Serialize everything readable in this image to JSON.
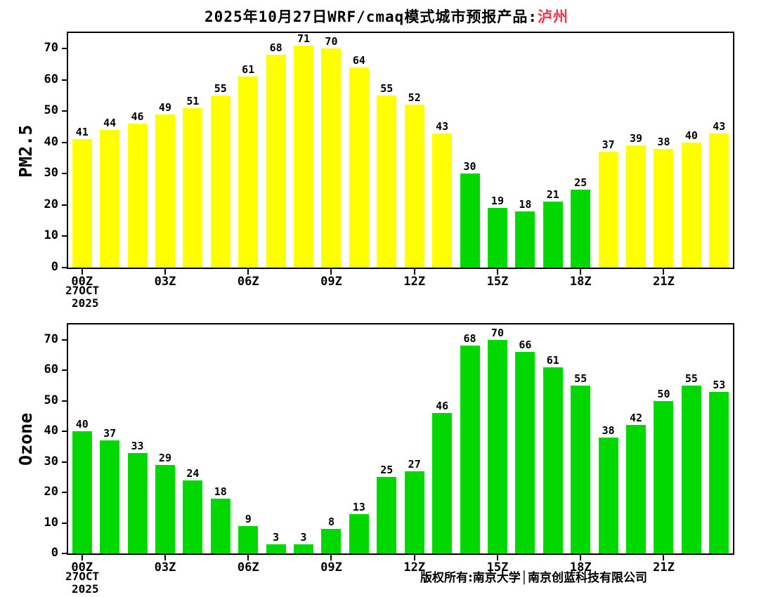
{
  "title": {
    "prefix": "2025年10月27日WRF/cmaq模式城市预报产品:",
    "city": "泸州"
  },
  "colors": {
    "bar_yellow": "#ffff00",
    "bar_green": "#00d800",
    "city_red": "#f5324b",
    "axis_black": "#000000"
  },
  "footer": {
    "copyright": "版权所有:南京大学│南京创蓝科技有限公司"
  },
  "x_axis": {
    "tick_labels": [
      "00Z",
      "03Z",
      "06Z",
      "09Z",
      "12Z",
      "15Z",
      "18Z",
      "21Z"
    ],
    "tick_step": 3,
    "start_date_line1": "27OCT",
    "start_date_line2": "2025"
  },
  "chart_data": [
    {
      "type": "bar",
      "title": "",
      "ylabel": "PM2.5",
      "xlabel": "",
      "ylim": [
        0,
        75
      ],
      "yticks": [
        0,
        10,
        20,
        30,
        40,
        50,
        60,
        70
      ],
      "x_tick_labels": [
        "00Z",
        "03Z",
        "06Z",
        "09Z",
        "12Z",
        "15Z",
        "18Z",
        "21Z"
      ],
      "values": [
        41,
        44,
        46,
        49,
        51,
        55,
        61,
        68,
        71,
        70,
        64,
        55,
        52,
        43,
        30,
        19,
        18,
        21,
        25,
        37,
        39,
        38,
        40,
        43
      ],
      "bar_colors": [
        "#ffff00",
        "#ffff00",
        "#ffff00",
        "#ffff00",
        "#ffff00",
        "#ffff00",
        "#ffff00",
        "#ffff00",
        "#ffff00",
        "#ffff00",
        "#ffff00",
        "#ffff00",
        "#ffff00",
        "#ffff00",
        "#00d800",
        "#00d800",
        "#00d800",
        "#00d800",
        "#00d800",
        "#ffff00",
        "#ffff00",
        "#ffff00",
        "#ffff00",
        "#ffff00"
      ]
    },
    {
      "type": "bar",
      "title": "",
      "ylabel": "Ozone",
      "xlabel": "",
      "ylim": [
        0,
        75
      ],
      "yticks": [
        0,
        10,
        20,
        30,
        40,
        50,
        60,
        70
      ],
      "x_tick_labels": [
        "00Z",
        "03Z",
        "06Z",
        "09Z",
        "12Z",
        "15Z",
        "18Z",
        "21Z"
      ],
      "values": [
        40,
        37,
        33,
        29,
        24,
        18,
        9,
        3,
        3,
        8,
        13,
        25,
        27,
        46,
        68,
        70,
        66,
        61,
        55,
        38,
        42,
        50,
        55,
        53
      ],
      "bar_colors": [
        "#00d800",
        "#00d800",
        "#00d800",
        "#00d800",
        "#00d800",
        "#00d800",
        "#00d800",
        "#00d800",
        "#00d800",
        "#00d800",
        "#00d800",
        "#00d800",
        "#00d800",
        "#00d800",
        "#00d800",
        "#00d800",
        "#00d800",
        "#00d800",
        "#00d800",
        "#00d800",
        "#00d800",
        "#00d800",
        "#00d800",
        "#00d800"
      ]
    }
  ]
}
